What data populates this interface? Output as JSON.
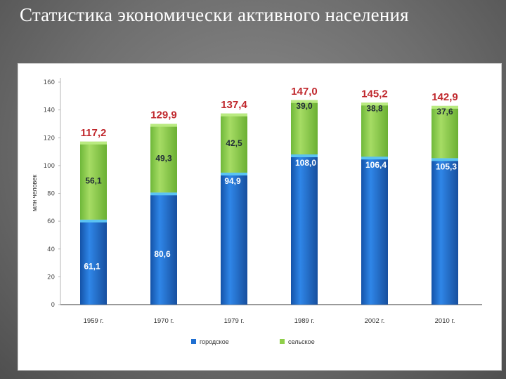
{
  "page": {
    "title": "Статистика экономически активного населения"
  },
  "chart_data": {
    "type": "bar",
    "stacked": true,
    "categories": [
      "1959 г.",
      "1970 г.",
      "1979 г.",
      "1989 г.",
      "2002 г.",
      "2010 г."
    ],
    "series": [
      {
        "name": "городское",
        "values": [
          61.1,
          80.6,
          94.9,
          108.0,
          106.4,
          105.3
        ],
        "labels": [
          "61,1",
          "80,6",
          "94,9",
          "108,0",
          "106,4",
          "105,3"
        ],
        "color": "#1f6fd1"
      },
      {
        "name": "сельское",
        "values": [
          56.1,
          49.3,
          42.5,
          39.0,
          38.8,
          37.6
        ],
        "labels": [
          "56,1",
          "49,3",
          "42,5",
          "39,0",
          "38,8",
          "37,6"
        ],
        "color": "#8fcf4a"
      }
    ],
    "totals": [
      117.2,
      129.9,
      137.4,
      147.0,
      145.2,
      142.9
    ],
    "total_labels": [
      "117,2",
      "129,9",
      "137,4",
      "147,0",
      "145,2",
      "142,9"
    ],
    "total_color": "#c0282d",
    "ylabel": "млн человек",
    "ylim": [
      0,
      160
    ],
    "yticks": [
      0,
      20,
      40,
      60,
      80,
      100,
      120,
      140,
      160
    ],
    "ytick_labels": [
      "0",
      "20",
      "40",
      "60",
      "80",
      "100",
      "120",
      "140",
      "160"
    ],
    "grid": false,
    "legend_position": "bottom"
  }
}
